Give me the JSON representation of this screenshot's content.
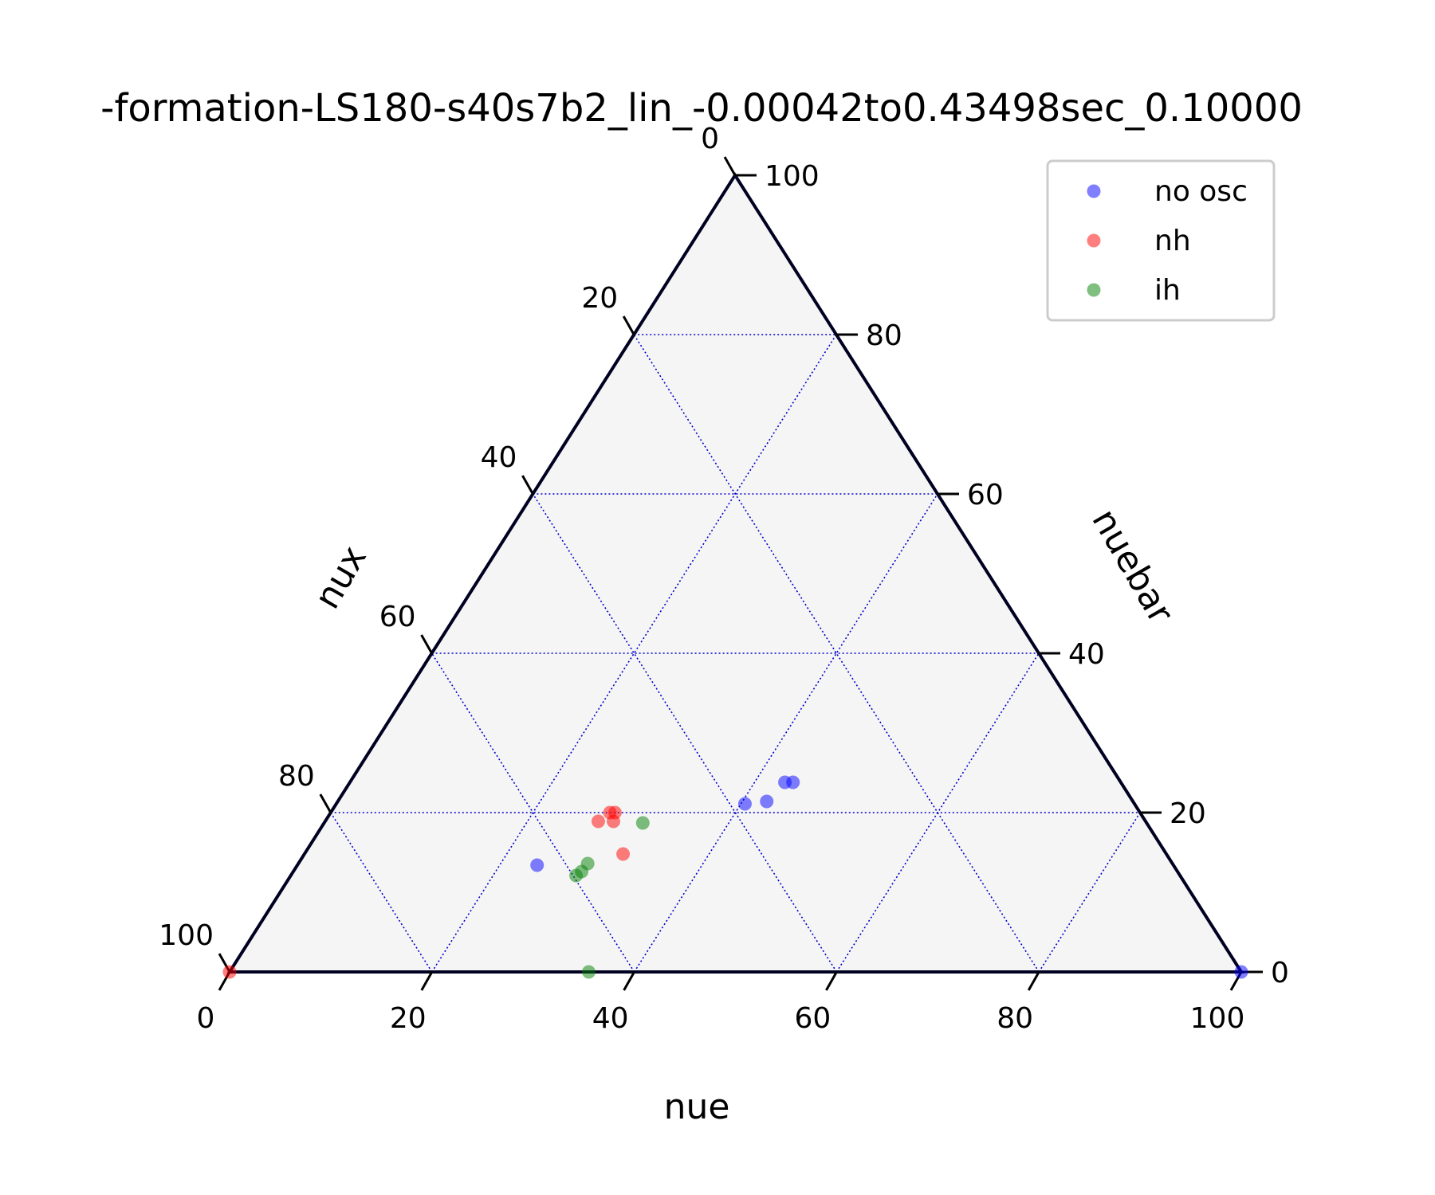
{
  "chart_data": {
    "type": "scatter",
    "subtype": "ternary",
    "title": "-formation-LS180-s40s7b2_lin_-0.00042to0.43498sec_0.10000",
    "axes": {
      "bottom": {
        "label": "nue",
        "ticks": [
          "0",
          "20",
          "40",
          "60",
          "80",
          "100"
        ]
      },
      "right": {
        "label": "nuebar",
        "ticks": [
          "0",
          "20",
          "40",
          "60",
          "80",
          "100"
        ]
      },
      "left": {
        "label": "nux",
        "ticks": [
          "0",
          "20",
          "40",
          "60",
          "80",
          "100"
        ]
      }
    },
    "axis_range": [
      0,
      100
    ],
    "grid": true,
    "grid_color": "#0000cc",
    "background_color": "#f5f5f5",
    "legend": {
      "location": "top-right"
    },
    "series": [
      {
        "name": "no osc",
        "color": "#0000ff",
        "points": [
          {
            "nue": 100,
            "nuebar": 0
          },
          {
            "nue": 43.0,
            "nuebar": 23.8
          },
          {
            "nue": 43.8,
            "nuebar": 23.8
          },
          {
            "nue": 40.4,
            "nuebar": 21.1
          },
          {
            "nue": 42.4,
            "nuebar": 21.4
          },
          {
            "nue": 23.7,
            "nuebar": 13.4
          }
        ]
      },
      {
        "name": "nh",
        "color": "#ff0000",
        "points": [
          {
            "nue": 0,
            "nuebar": 0
          },
          {
            "nue": 27.6,
            "nuebar": 20.0
          },
          {
            "nue": 28.1,
            "nuebar": 20.0
          },
          {
            "nue": 27.0,
            "nuebar": 18.9
          },
          {
            "nue": 28.5,
            "nuebar": 18.9
          },
          {
            "nue": 31.5,
            "nuebar": 14.8
          }
        ]
      },
      {
        "name": "ih",
        "color": "#008000",
        "points": [
          {
            "nue": 35.5,
            "nuebar": 0
          },
          {
            "nue": 31.5,
            "nuebar": 18.7
          },
          {
            "nue": 28.6,
            "nuebar": 13.6
          },
          {
            "nue": 28.5,
            "nuebar": 12.6
          },
          {
            "nue": 28.2,
            "nuebar": 12.1
          }
        ]
      }
    ]
  }
}
